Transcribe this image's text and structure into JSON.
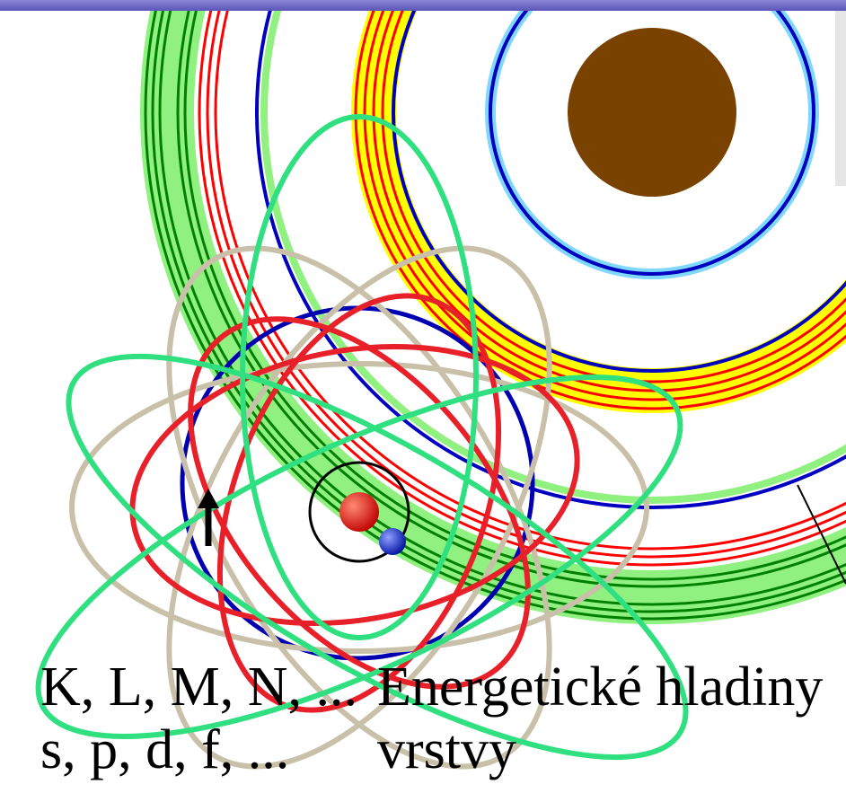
{
  "legend": {
    "rows": [
      {
        "symbols": "K, L, M, N, ...",
        "meaning": "Energetické hladiny"
      },
      {
        "symbols": "s, p, d, f, ...",
        "meaning": "vrstvy"
      }
    ]
  }
}
